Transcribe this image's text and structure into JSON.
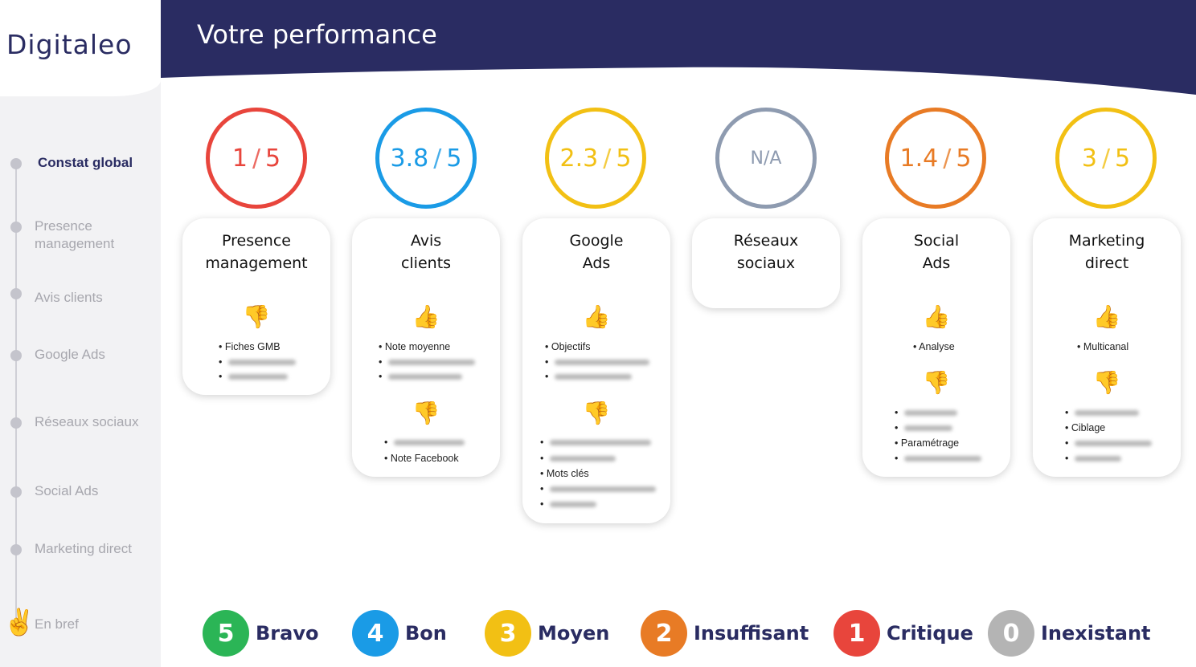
{
  "brand": {
    "logo_text": "Digitaleo",
    "navy": "#2a2c62"
  },
  "header": {
    "title": "Votre performance"
  },
  "sidebar": {
    "items": [
      {
        "label": "Constat global",
        "active": true
      },
      {
        "label": "Presence management"
      },
      {
        "label": "Avis clients"
      },
      {
        "label": "Google Ads"
      },
      {
        "label": "Réseaux sociaux"
      },
      {
        "label": "Social Ads"
      },
      {
        "label": "Marketing direct"
      },
      {
        "label": "En bref",
        "icon": "victory-hand-icon"
      }
    ]
  },
  "scores": [
    {
      "value": "1",
      "max": "5",
      "color": "#e8453c"
    },
    {
      "value": "3.8",
      "max": "5",
      "color": "#1a9be6"
    },
    {
      "value": "2.3",
      "max": "5",
      "color": "#f2c014"
    },
    {
      "value": "N/A",
      "color": "#8e9bb0"
    },
    {
      "value": "1.4",
      "max": "5",
      "color": "#e87b25"
    },
    {
      "value": "3",
      "max": "5",
      "color": "#f2c014"
    }
  ],
  "slash": "/",
  "cards": [
    {
      "title": "Presence\nmanagement",
      "up_items": [],
      "down_items": [
        "Fiches GMB"
      ]
    },
    {
      "title": "Avis\nclients",
      "up_items": [
        "Note moyenne"
      ],
      "down_items": [
        "Note Facebook"
      ]
    },
    {
      "title": "Google\nAds",
      "up_items": [
        "Objectifs"
      ],
      "down_items": [
        "Mots clés"
      ]
    },
    {
      "title": "Réseaux\nsociaux"
    },
    {
      "title": "Social\nAds",
      "up_items": [
        "Analyse"
      ],
      "down_items": [
        "Paramétrage"
      ]
    },
    {
      "title": "Marketing\ndirect",
      "up_items": [
        "Multicanal"
      ],
      "down_items": [
        "Ciblage"
      ]
    }
  ],
  "legend": [
    {
      "num": "5",
      "label": "Bravo",
      "color": "#2bb556"
    },
    {
      "num": "4",
      "label": "Bon",
      "color": "#1a9be6"
    },
    {
      "num": "3",
      "label": "Moyen",
      "color": "#f2c014"
    },
    {
      "num": "2",
      "label": "Insuffisant",
      "color": "#e87b25"
    },
    {
      "num": "1",
      "label": "Critique",
      "color": "#e8453c"
    },
    {
      "num": "0",
      "label": "Inexistant",
      "color": "#b4b4b4"
    }
  ],
  "icons": {
    "up": "thumbs-up-icon",
    "down": "thumbs-down-icon"
  }
}
